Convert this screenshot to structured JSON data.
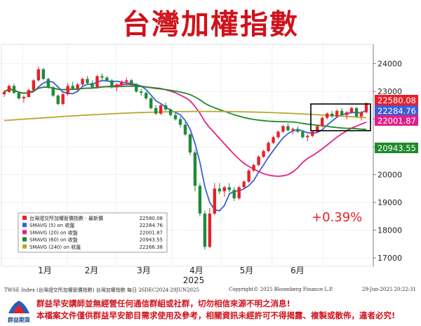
{
  "title": "台灣加權指數",
  "chart_data": {
    "type": "candlestick",
    "y_ticks": [
      17000,
      18000,
      19000,
      20000,
      21000,
      22000,
      23000,
      24000
    ],
    "ylim": [
      16700,
      24700
    ],
    "x_month_labels": [
      "1月",
      "2月",
      "3月",
      "4月",
      "5月",
      "6月"
    ],
    "year_label": "2025",
    "annotation": "+0.39%",
    "value_tags": [
      {
        "text": "22580.08",
        "color": "#e8202a",
        "value": 22580.08
      },
      {
        "text": "22284.76",
        "color": "#3a5fd8",
        "value": 22284.76
      },
      {
        "text": "22001.87",
        "color": "#e01f8a",
        "value": 22001.87
      },
      {
        "text": "20943.55",
        "color": "#1e8a2a",
        "value": 20943.55
      }
    ],
    "legend": [
      {
        "color": "#e8202a",
        "label": "台灣證交所加權股價指數 - 最新價",
        "value": "22580.08"
      },
      {
        "color": "#3a5fd8",
        "label": "SMAVG (5)  on 收盤",
        "value": "22284.76"
      },
      {
        "color": "#e01f8a",
        "label": "SMAVG (20)  on 收盤",
        "value": "22001.87"
      },
      {
        "color": "#1e8a2a",
        "label": "SMAVG (60)  on 收盤",
        "value": "20943.55"
      },
      {
        "color": "#b8a830",
        "label": "SMAVG (240)  on 收盤",
        "value": "22266.38"
      }
    ],
    "candles_approx": [
      [
        22900,
        23050,
        22800,
        22980
      ],
      [
        22980,
        23250,
        22950,
        23200
      ],
      [
        23200,
        23280,
        22900,
        22950
      ],
      [
        22950,
        23000,
        22700,
        22750
      ],
      [
        22750,
        22850,
        22600,
        22800
      ],
      [
        22800,
        23100,
        22780,
        23050
      ],
      [
        23050,
        23450,
        23000,
        23400
      ],
      [
        23400,
        23900,
        23350,
        23800
      ],
      [
        23800,
        23850,
        23400,
        23450
      ],
      [
        23450,
        23500,
        23100,
        23150
      ],
      [
        23150,
        23200,
        22800,
        22850
      ],
      [
        22850,
        22900,
        22500,
        22550
      ],
      [
        22550,
        22950,
        22500,
        22900
      ],
      [
        22900,
        23300,
        22850,
        23200
      ],
      [
        23200,
        23350,
        23050,
        23100
      ],
      [
        23100,
        23300,
        23000,
        23250
      ],
      [
        23250,
        23500,
        23200,
        23450
      ],
      [
        23450,
        23550,
        23250,
        23300
      ],
      [
        23300,
        23400,
        23100,
        23150
      ],
      [
        23150,
        23600,
        23100,
        23550
      ],
      [
        23550,
        23650,
        23400,
        23500
      ],
      [
        23500,
        23550,
        23350,
        23400
      ],
      [
        23400,
        23450,
        23100,
        23150
      ],
      [
        23150,
        23300,
        23000,
        23250
      ],
      [
        23250,
        23400,
        23150,
        23350
      ],
      [
        23350,
        23500,
        23250,
        23400
      ],
      [
        23400,
        23450,
        23200,
        23250
      ],
      [
        23250,
        23300,
        22950,
        23000
      ],
      [
        23000,
        23100,
        22850,
        22950
      ],
      [
        22950,
        23000,
        22700,
        22750
      ],
      [
        22750,
        22800,
        22350,
        22400
      ],
      [
        22400,
        22500,
        22150,
        22200
      ],
      [
        22200,
        22550,
        22150,
        22500
      ],
      [
        22500,
        22600,
        22300,
        22350
      ],
      [
        22350,
        22400,
        22100,
        22150
      ],
      [
        22150,
        22250,
        21950,
        22000
      ],
      [
        22000,
        22100,
        21700,
        21800
      ],
      [
        21800,
        21900,
        21400,
        21450
      ],
      [
        21450,
        21500,
        20700,
        20800
      ],
      [
        20800,
        20900,
        19400,
        19600
      ],
      [
        19600,
        19700,
        18500,
        18600
      ],
      [
        18600,
        18700,
        17300,
        17400
      ],
      [
        17400,
        18800,
        17350,
        18600
      ],
      [
        18600,
        19700,
        18550,
        19500
      ],
      [
        19500,
        19700,
        19300,
        19400
      ],
      [
        19400,
        19600,
        19200,
        19550
      ],
      [
        19550,
        19700,
        19350,
        19450
      ],
      [
        19450,
        19550,
        19050,
        19150
      ],
      [
        19150,
        19600,
        19100,
        19550
      ],
      [
        19550,
        19800,
        19500,
        19750
      ],
      [
        19750,
        20200,
        19700,
        20150
      ],
      [
        20150,
        20400,
        20100,
        20350
      ],
      [
        20350,
        20700,
        20300,
        20650
      ],
      [
        20650,
        20900,
        20600,
        20850
      ],
      [
        20850,
        21200,
        20800,
        21150
      ],
      [
        21150,
        21400,
        21100,
        21350
      ],
      [
        21350,
        21600,
        21300,
        21550
      ],
      [
        21550,
        21800,
        21500,
        21750
      ],
      [
        21750,
        21850,
        21550,
        21600
      ],
      [
        21600,
        21700,
        21450,
        21650
      ],
      [
        21650,
        21750,
        21500,
        21550
      ],
      [
        21550,
        21600,
        21300,
        21350
      ],
      [
        21350,
        21450,
        21200,
        21400
      ],
      [
        21400,
        21600,
        21350,
        21550
      ],
      [
        21550,
        21800,
        21500,
        21750
      ],
      [
        21750,
        22100,
        21700,
        22050
      ],
      [
        22050,
        22250,
        22000,
        22200
      ],
      [
        22200,
        22300,
        22050,
        22100
      ],
      [
        22100,
        22350,
        22050,
        22300
      ],
      [
        22300,
        22400,
        22100,
        22150
      ],
      [
        22150,
        22300,
        22000,
        22250
      ],
      [
        22250,
        22450,
        22200,
        22400
      ],
      [
        22400,
        22450,
        22050,
        22100
      ],
      [
        22100,
        22300,
        21950,
        22250
      ],
      [
        22250,
        22600,
        22200,
        22580
      ]
    ]
  },
  "footer": {
    "source": "TWSE Index (台灣證交所加權股價指數) 台灣加權指數  每日 26DEC2024-29JUN2025",
    "copyright": "Copyright© 2025 Bloomberg Finance L.P.",
    "date": "29-Jun-2025 20:22:31",
    "logo_name": "群益期貨",
    "disclaimer1": "群益早安講師並無經營任何通信群組或社群，切勿相信來源不明之消息!",
    "disclaimer2": "本檔案文件僅供群益早安節目需求使用及參考，相關資訊未經許可不得揭露、複製或散佈，違者必究!"
  },
  "colors": {
    "up": "#e8202a",
    "down": "#1f8a3a",
    "title": "#d0121b",
    "frame": "#000000"
  }
}
